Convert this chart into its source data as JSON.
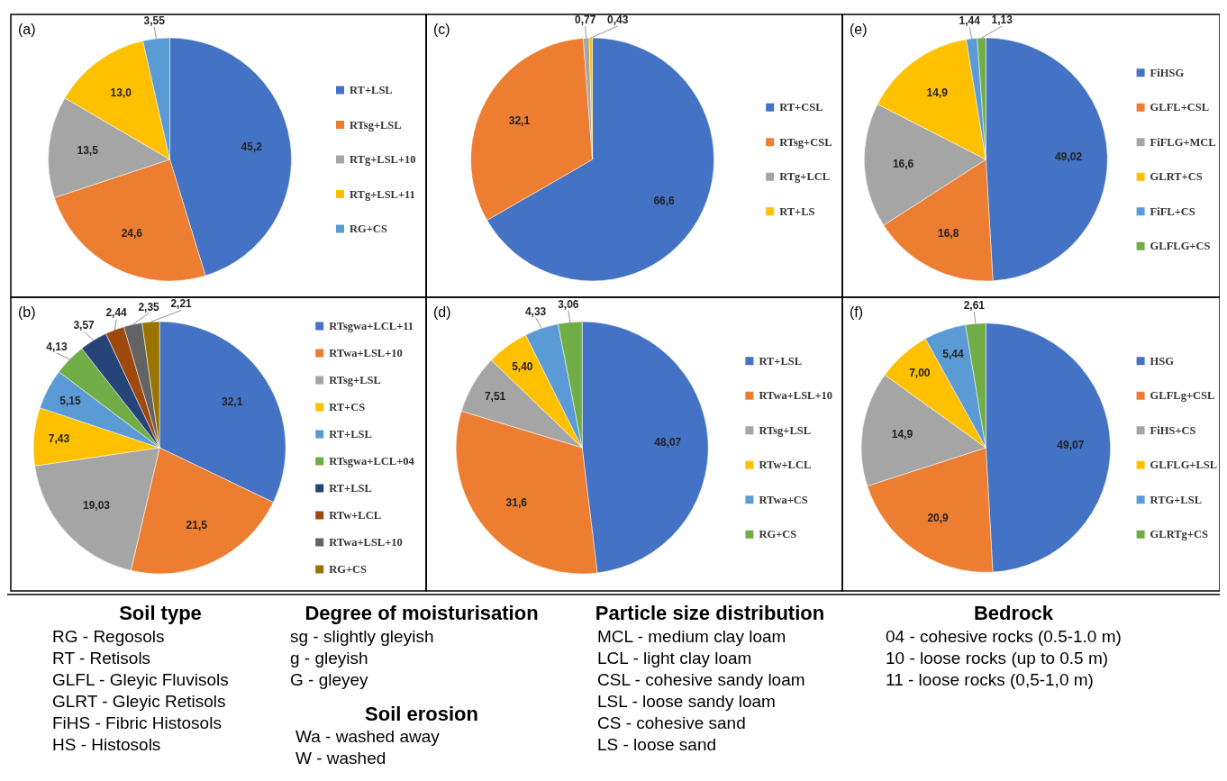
{
  "chart_data": [
    {
      "type": "pie",
      "title": "(a)",
      "legend": "right",
      "categories": [
        "RT+LSL",
        "RTsg+LSL",
        "RTg+LSL+10",
        "RTg+LSL+11",
        "RG+CS"
      ],
      "values": [
        45.2,
        24.6,
        13.5,
        13.0,
        3.55
      ],
      "value_labels": [
        "45,2",
        "24,6",
        "13,5",
        "13,0",
        "3,55"
      ],
      "colors": [
        "#4472c4",
        "#ed7d31",
        "#a5a5a5",
        "#ffc000",
        "#5b9bd5"
      ]
    },
    {
      "type": "pie",
      "title": "(b)",
      "legend": "right",
      "categories": [
        "RTsgwa+LCL+11",
        "RTwa+LSL+10",
        "RTsg+LSL",
        "RT+CS",
        "RT+LSL",
        "RTsgwa+LCL+04",
        "RT+LSL",
        "RTw+LCL",
        "RTwa+LSL+10",
        "RG+CS"
      ],
      "values": [
        32.1,
        21.5,
        19.03,
        7.43,
        5.15,
        4.13,
        3.57,
        2.44,
        2.35,
        2.21
      ],
      "value_labels": [
        "32,1",
        "21,5",
        "19,03",
        "7,43",
        "5,15",
        "4,13",
        "3,57",
        "2,44",
        "2,35",
        "2,21"
      ],
      "colors": [
        "#4472c4",
        "#ed7d31",
        "#a5a5a5",
        "#ffc000",
        "#5b9bd5",
        "#70ad47",
        "#264478",
        "#9e480e",
        "#636363",
        "#997300"
      ]
    },
    {
      "type": "pie",
      "title": "(c)",
      "legend": "right",
      "categories": [
        "RT+CSL",
        "RTsg+CSL",
        "RTg+LCL",
        "RT+LS"
      ],
      "values": [
        66.6,
        32.1,
        0.77,
        0.43
      ],
      "value_labels": [
        "66,6",
        "32,1",
        "0,77",
        "0,43"
      ],
      "colors": [
        "#4472c4",
        "#ed7d31",
        "#a5a5a5",
        "#ffc000"
      ]
    },
    {
      "type": "pie",
      "title": "(d)",
      "legend": "right",
      "categories": [
        "RT+LSL",
        "RTwa+LSL+10",
        "RTsg+LSL",
        "RTw+LCL",
        "RTwa+CS",
        "RG+CS"
      ],
      "values": [
        48.07,
        31.6,
        7.51,
        5.4,
        4.33,
        3.06
      ],
      "value_labels": [
        "48,07",
        "31,6",
        "7,51",
        "5,40",
        "4,33",
        "3,06"
      ],
      "colors": [
        "#4472c4",
        "#ed7d31",
        "#a5a5a5",
        "#ffc000",
        "#5b9bd5",
        "#70ad47"
      ]
    },
    {
      "type": "pie",
      "title": "(e)",
      "legend": "right",
      "categories": [
        "FiHSG",
        "GLFL+CSL",
        "FiFLG+MCL",
        "GLRT+CS",
        "FiFL+CS",
        "GLFLG+CS"
      ],
      "values": [
        49.02,
        16.8,
        16.6,
        14.9,
        1.44,
        1.13
      ],
      "value_labels": [
        "49,02",
        "16,8",
        "16,6",
        "14,9",
        "1,44",
        "1,13"
      ],
      "colors": [
        "#4472c4",
        "#ed7d31",
        "#a5a5a5",
        "#ffc000",
        "#5b9bd5",
        "#70ad47"
      ]
    },
    {
      "type": "pie",
      "title": "(f)",
      "legend": "right",
      "categories": [
        "HSG",
        "GLFLg+CSL",
        "FiHS+CS",
        "GLFLG+LSL",
        "RTG+LSL",
        "GLRTg+CS"
      ],
      "values": [
        49.07,
        20.9,
        14.9,
        7.0,
        5.44,
        2.61
      ],
      "value_labels": [
        "49,07",
        "20,9",
        "14,9",
        "7,00",
        "5,44",
        "2,61"
      ],
      "colors": [
        "#4472c4",
        "#ed7d31",
        "#a5a5a5",
        "#ffc000",
        "#5b9bd5",
        "#70ad47"
      ]
    },
    {
      "type": "other",
      "title": "Soil type",
      "annotations": [
        "RG - Regosols",
        "RT - Retisols",
        "GLFL - Gleyic Fluvisols",
        "GLRT - Gleyic Retisols",
        "FiHS - Fibric Histosols",
        "HS - Histosols"
      ]
    },
    {
      "type": "other",
      "title": "Degree of moisturisation",
      "annotations": [
        "sg - slightly gleyish",
        "g - gleyish",
        "G - gleyey"
      ]
    },
    {
      "type": "other",
      "title": "Soil erosion",
      "annotations": [
        "Wa - washed away",
        "W - washed"
      ]
    },
    {
      "type": "other",
      "title": "Particle size distribution",
      "annotations": [
        "MCL - medium clay loam",
        "LCL - light clay loam",
        "CSL - cohesive sandy loam",
        "LSL - loose sandy loam",
        "CS - cohesive sand",
        "LS - loose sand"
      ]
    },
    {
      "type": "other",
      "title": "Bedrock",
      "annotations": [
        "04 - cohesive rocks (0.5-1.0 m)",
        "10 - loose rocks (up to 0.5 m)",
        "11 - loose rocks (0,5-1,0 m)"
      ]
    }
  ]
}
